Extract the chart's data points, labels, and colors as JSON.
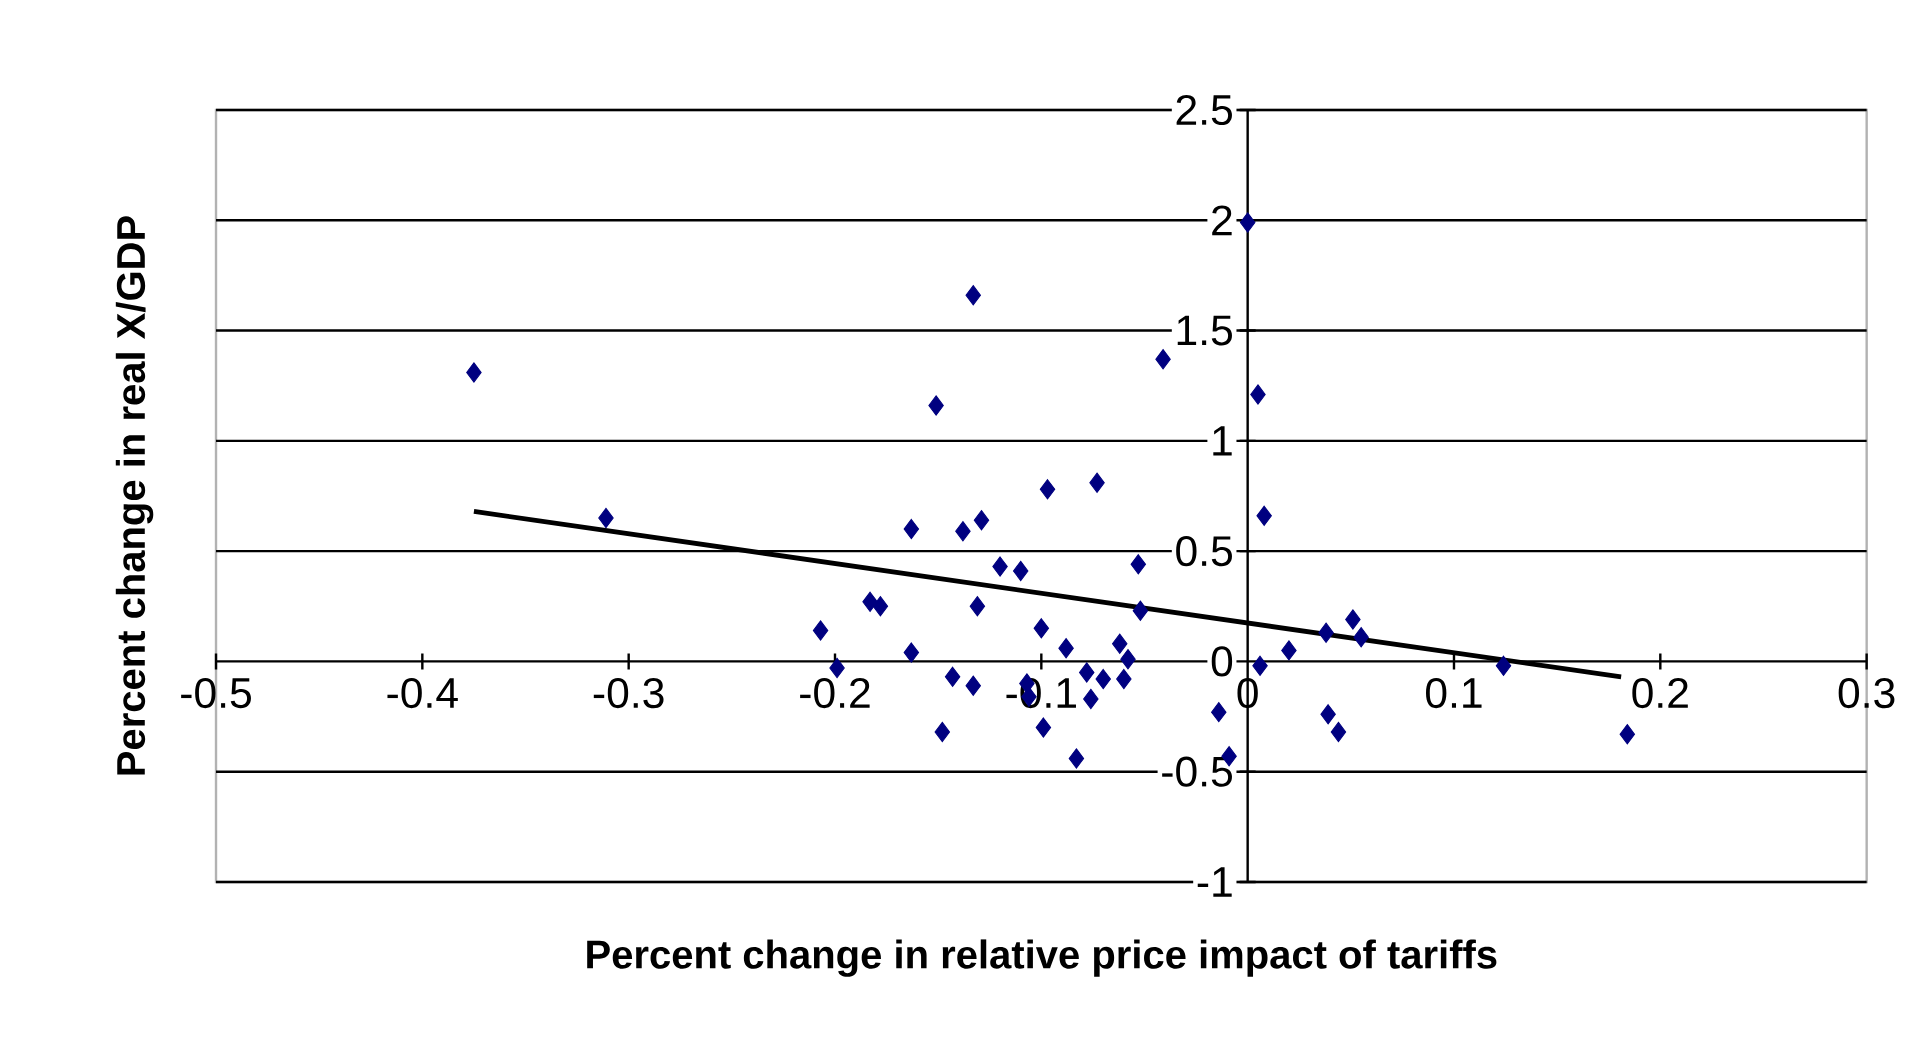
{
  "chart_data": {
    "type": "scatter",
    "xlabel": "Percent change in relative price impact of tariffs",
    "ylabel": "Percent change in real X/GDP",
    "xlim": [
      -0.5,
      0.3
    ],
    "ylim": [
      -1,
      2.5
    ],
    "xticks": [
      -0.5,
      -0.4,
      -0.3,
      -0.2,
      -0.1,
      0,
      0.1,
      0.2,
      0.3
    ],
    "yticks": [
      -1,
      -0.5,
      0,
      0.5,
      1,
      1.5,
      2,
      2.5
    ],
    "grid": "y",
    "series": [
      {
        "marker": "diamond",
        "color": "#000080",
        "x": [
          -0.375,
          -0.311,
          -0.133,
          -0.151,
          -0.163,
          -0.138,
          -0.129,
          -0.12,
          -0.11,
          -0.183,
          -0.178,
          -0.131,
          -0.207,
          -0.199,
          -0.163,
          -0.143,
          -0.133,
          -0.148,
          -0.041,
          0.005,
          -0.097,
          -0.073,
          -0.053,
          -0.052,
          0.008,
          -0.1,
          -0.088,
          -0.107,
          -0.106,
          -0.099,
          -0.083,
          -0.078,
          -0.07,
          -0.076,
          -0.062,
          -0.058,
          -0.06,
          -0.014,
          -0.009,
          0.006,
          0.02,
          0.038,
          0.051,
          0.055,
          0.039,
          0.044,
          0.0,
          0.124,
          0.184
        ],
        "values": [
          1.31,
          0.65,
          1.66,
          1.16,
          0.6,
          0.59,
          0.64,
          0.43,
          0.41,
          0.27,
          0.25,
          0.25,
          0.14,
          -0.03,
          0.04,
          -0.07,
          -0.11,
          -0.32,
          1.37,
          1.21,
          0.78,
          0.81,
          0.44,
          0.23,
          0.66,
          0.15,
          0.06,
          -0.1,
          -0.16,
          -0.3,
          -0.44,
          -0.05,
          -0.08,
          -0.17,
          0.08,
          0.01,
          -0.08,
          -0.23,
          -0.43,
          -0.02,
          0.05,
          0.13,
          0.19,
          0.11,
          -0.24,
          -0.32,
          1.99,
          -0.02,
          -0.33
        ]
      },
      {
        "type": "line",
        "color": "#000000",
        "x": [
          -0.375,
          0.181
        ],
        "values": [
          0.68,
          -0.07
        ]
      }
    ]
  }
}
